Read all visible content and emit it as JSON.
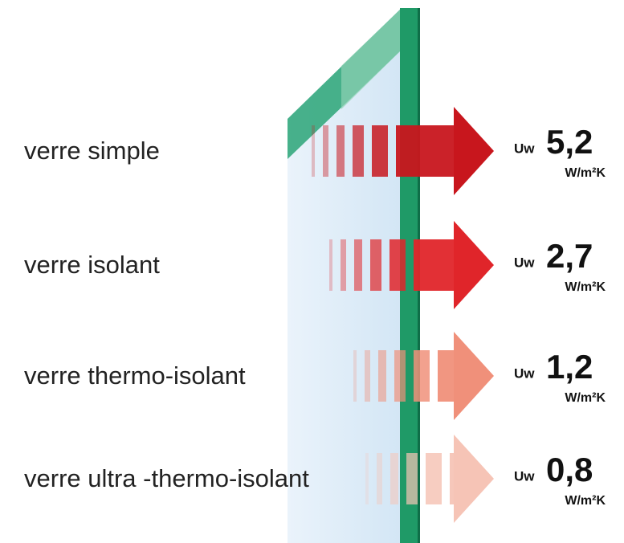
{
  "rows": [
    {
      "label": "verre simple",
      "prefix": "Uw",
      "value": "5,2",
      "unit": "W/m²K"
    },
    {
      "label": "verre isolant",
      "prefix": "Uw",
      "value": "2,7",
      "unit": "W/m²K"
    },
    {
      "label": "verre thermo-isolant",
      "prefix": "Uw",
      "value": "1,2",
      "unit": "W/m²K"
    },
    {
      "label": "verre ultra -thermo-isolant",
      "prefix": "Uw",
      "value": "0,8",
      "unit": "W/m²K"
    }
  ]
}
